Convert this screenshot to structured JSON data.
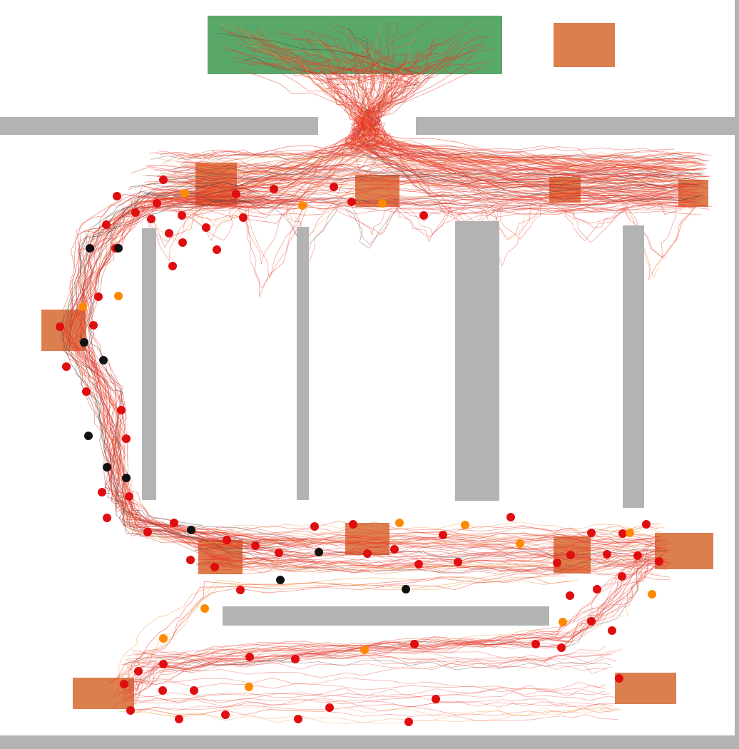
{
  "colors": {
    "background": "#ffffff",
    "wall": "#b3b3b3",
    "exit_zone": "#59a86a",
    "waypoint_zone": "#dc7f4f",
    "path_red": "#e83a2c",
    "path_orange": "#f39a3a",
    "path_dark": "#444444",
    "agent_red": "#e00d10",
    "agent_orange": "#ff8a00",
    "agent_black": "#111111"
  },
  "legend": {
    "agent_red_meaning": "",
    "agent_orange_meaning": "",
    "agent_black_meaning": ""
  }
}
